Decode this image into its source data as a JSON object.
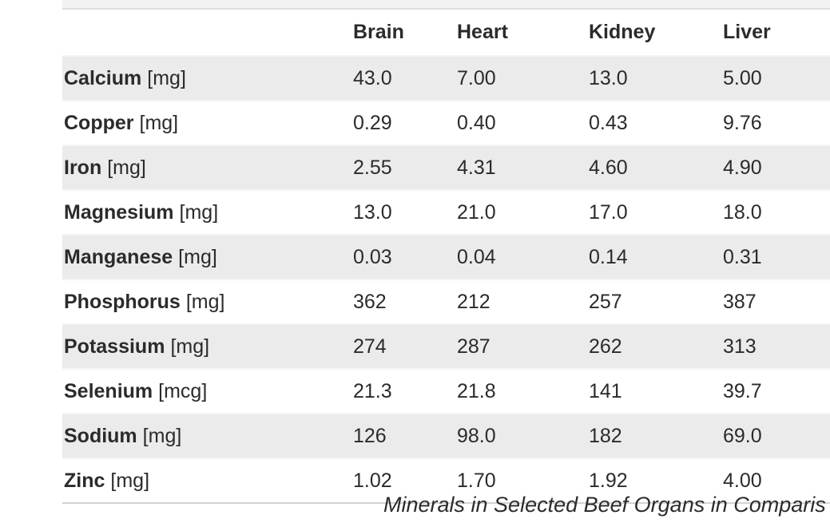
{
  "chart_data": {
    "type": "table",
    "columns": [
      "Brain",
      "Heart",
      "Kidney",
      "Liver"
    ],
    "rows": [
      {
        "mineral": "Calcium",
        "unit": "[mg]",
        "values": [
          "43.0",
          "7.00",
          "13.0",
          "5.00"
        ]
      },
      {
        "mineral": "Copper",
        "unit": "[mg]",
        "values": [
          "0.29",
          "0.40",
          "0.43",
          "9.76"
        ]
      },
      {
        "mineral": "Iron",
        "unit": "[mg]",
        "values": [
          "2.55",
          "4.31",
          "4.60",
          "4.90"
        ]
      },
      {
        "mineral": "Magnesium",
        "unit": "[mg]",
        "values": [
          "13.0",
          "21.0",
          "17.0",
          "18.0"
        ]
      },
      {
        "mineral": "Manganese",
        "unit": "[mg]",
        "values": [
          "0.03",
          "0.04",
          "0.14",
          "0.31"
        ]
      },
      {
        "mineral": "Phosphorus",
        "unit": "[mg]",
        "values": [
          "362",
          "212",
          "257",
          "387"
        ]
      },
      {
        "mineral": "Potassium",
        "unit": "[mg]",
        "values": [
          "274",
          "287",
          "262",
          "313"
        ]
      },
      {
        "mineral": "Selenium",
        "unit": "[mcg]",
        "values": [
          "21.3",
          "21.8",
          "141",
          "39.7"
        ]
      },
      {
        "mineral": "Sodium",
        "unit": "[mg]",
        "values": [
          "126",
          "98.0",
          "182",
          "69.0"
        ]
      },
      {
        "mineral": "Zinc",
        "unit": "[mg]",
        "values": [
          "1.02",
          "1.70",
          "1.92",
          "4.00"
        ]
      }
    ],
    "caption": "Minerals in Selected Beef Organs in Comparis",
    "layout": {
      "striped_rows": "odd data rows shaded",
      "value_alignment": "left",
      "right_edge_clipped": true
    }
  },
  "colors": {
    "stripe": "#ebebeb",
    "text": "#2b2b2b",
    "top-strip": "#f2f2f2",
    "top-line": "#dcdcdc",
    "bottom-line": "#d3d3d3"
  }
}
